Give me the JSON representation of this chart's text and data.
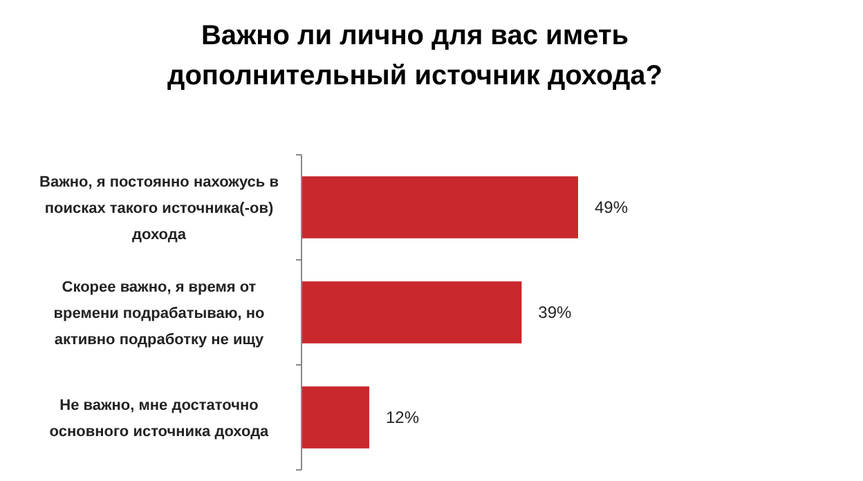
{
  "chart_data": {
    "type": "bar",
    "orientation": "horizontal",
    "title": "Важно ли лично для вас иметь\nдополнительный источник дохода?",
    "categories": [
      "Важно, я постоянно  нахожусь в\nпоисках  такого  источника(-ов)\nдохода",
      "Скорее важно, я время  от\nвремени подрабатываю,  но\nактивно  подработку  не ищу",
      "Не важно, мне достаточно\nосновного  источника  дохода"
    ],
    "values": [
      49,
      39,
      12
    ],
    "color": "#c9282d",
    "value_labels": [
      "49%",
      "39%",
      "12%"
    ]
  }
}
